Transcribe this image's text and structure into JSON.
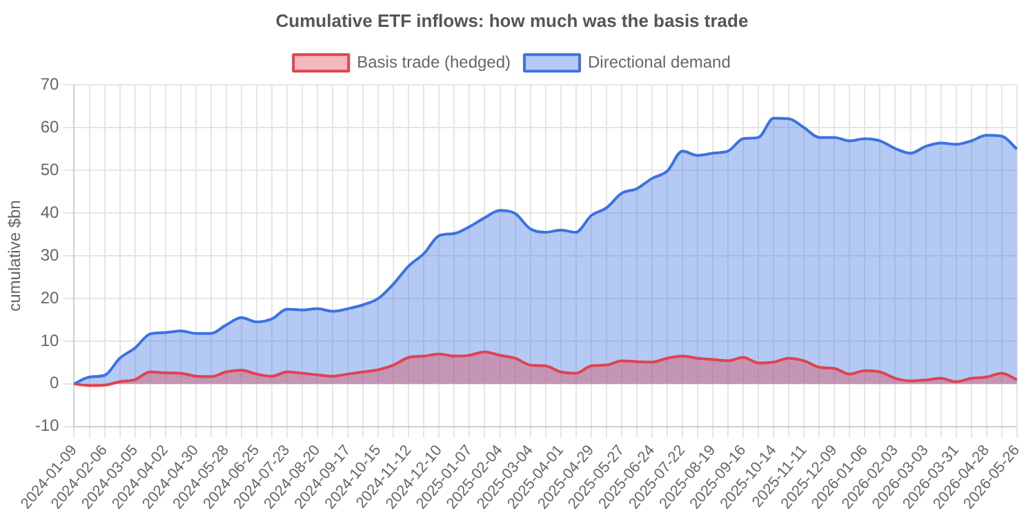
{
  "chart_data": {
    "type": "area",
    "title": "Cumulative ETF inflows: how much was the basis trade",
    "ylabel": "cumulative $bn",
    "categories": [
      "2024-01-09",
      null,
      "2024-02-06",
      null,
      "2024-03-05",
      null,
      "2024-04-02",
      null,
      "2024-04-30",
      null,
      "2024-05-28",
      null,
      "2024-06-25",
      null,
      "2024-07-23",
      null,
      "2024-08-20",
      null,
      "2024-09-17",
      null,
      "2024-10-15",
      null,
      "2024-11-12",
      null,
      "2024-12-10",
      null,
      "2025-01-07",
      null,
      "2025-02-04",
      null,
      "2025-03-04",
      null,
      "2025-04-01",
      null,
      "2025-04-29",
      null,
      "2025-05-27",
      null,
      "2025-06-24",
      null,
      "2025-07-22",
      null,
      "2025-08-19",
      null,
      "2025-09-16",
      null,
      "2025-10-14",
      null,
      "2025-11-11",
      null,
      "2025-12-09",
      null,
      "2026-01-06",
      null,
      "2026-02-03",
      null,
      "2026-03-03",
      null,
      "2026-03-31",
      null,
      "2026-04-28",
      null,
      "2026-05-26"
    ],
    "series": [
      {
        "name": "Basis trade (hedged)",
        "color": "#e0434f",
        "values": [
          0,
          -0.4,
          -0.3,
          0.5,
          1.0,
          2.8,
          2.6,
          2.5,
          1.8,
          1.7,
          2.8,
          3.2,
          2.3,
          1.8,
          2.8,
          2.5,
          2.1,
          1.8,
          2.3,
          2.8,
          3.3,
          4.4,
          6.2,
          6.5,
          7.0,
          6.5,
          6.7,
          7.5,
          6.7,
          6.0,
          4.4,
          4.2,
          2.8,
          2.5,
          4.2,
          4.4,
          5.4,
          5.2,
          5.1,
          6.0,
          6.5,
          6.0,
          5.7,
          5.4,
          6.2,
          4.9,
          5.1,
          6.0,
          5.4,
          3.9,
          3.6,
          2.3,
          3.1,
          2.8,
          1.3,
          0.7,
          0.9,
          1.3,
          0.5,
          1.3,
          1.6,
          2.5,
          1.0
        ]
      },
      {
        "name": "Directional demand",
        "color": "#3b72e3",
        "values": [
          0,
          1.6,
          2.0,
          6.0,
          8.4,
          11.7,
          12.0,
          12.4,
          11.8,
          11.8,
          13.8,
          15.5,
          14.5,
          15.2,
          17.5,
          17.3,
          17.6,
          17.0,
          17.6,
          18.5,
          20.0,
          23.4,
          27.6,
          30.5,
          34.7,
          35.2,
          36.8,
          38.9,
          40.6,
          39.9,
          36.3,
          35.5,
          36.0,
          35.5,
          39.4,
          41.2,
          44.6,
          45.7,
          48.1,
          49.8,
          54.5,
          53.5,
          54.0,
          54.5,
          57.4,
          57.7,
          62.2,
          62.1,
          60.0,
          57.7,
          57.7,
          56.9,
          57.4,
          56.9,
          55.1,
          54.0,
          55.6,
          56.4,
          56.1,
          56.9,
          58.2,
          58.0,
          55.0
        ]
      }
    ],
    "ylim": [
      -10,
      70
    ],
    "yticks": [
      -10,
      0,
      10,
      20,
      30,
      40,
      50,
      60,
      70
    ],
    "grid": true,
    "legend": "top",
    "marker": "none"
  }
}
